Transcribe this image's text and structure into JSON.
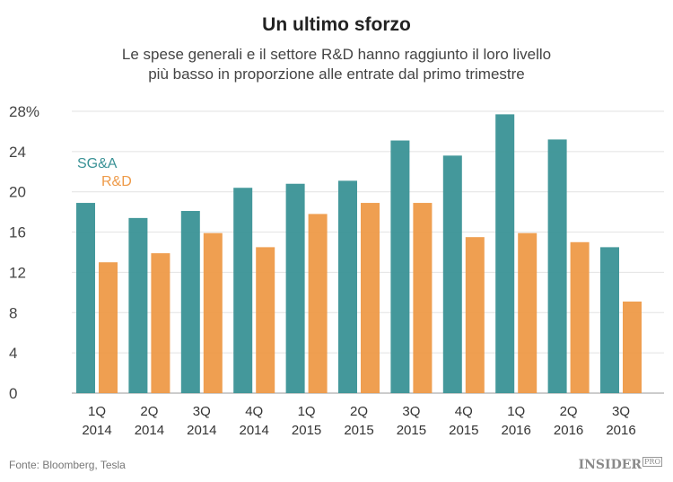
{
  "title": "Un ultimo sforzo",
  "subtitle_line1": "Le spese generali e il settore R&D hanno raggiunto il loro livello",
  "subtitle_line2": "più basso in proporzione alle entrate dal primo trimestre",
  "source": "Fonte: Bloomberg, Tesla",
  "logo": "INSIDER PRO",
  "chart_data": {
    "type": "bar",
    "categories": [
      "1Q 2014",
      "2Q 2014",
      "3Q 2014",
      "4Q 2014",
      "1Q 2015",
      "2Q 2015",
      "3Q 2015",
      "4Q 2015",
      "1Q 2016",
      "2Q 2016",
      "3Q 2016"
    ],
    "series": [
      {
        "name": "SG&A",
        "color": "#3a9296",
        "values": [
          18.9,
          17.4,
          18.1,
          20.4,
          20.8,
          21.1,
          25.1,
          23.6,
          27.7,
          25.2,
          14.5
        ]
      },
      {
        "name": "R&D",
        "color": "#ee9a48",
        "values": [
          13.0,
          13.9,
          15.9,
          14.5,
          17.8,
          18.9,
          18.9,
          15.5,
          15.9,
          15.0,
          9.1
        ]
      }
    ],
    "yticks": [
      "0",
      "4",
      "8",
      "12",
      "16",
      "20",
      "24",
      "28%"
    ],
    "ylim": [
      0,
      28
    ],
    "grid": true,
    "legend": "top-left",
    "xlabel": "",
    "ylabel": ""
  }
}
